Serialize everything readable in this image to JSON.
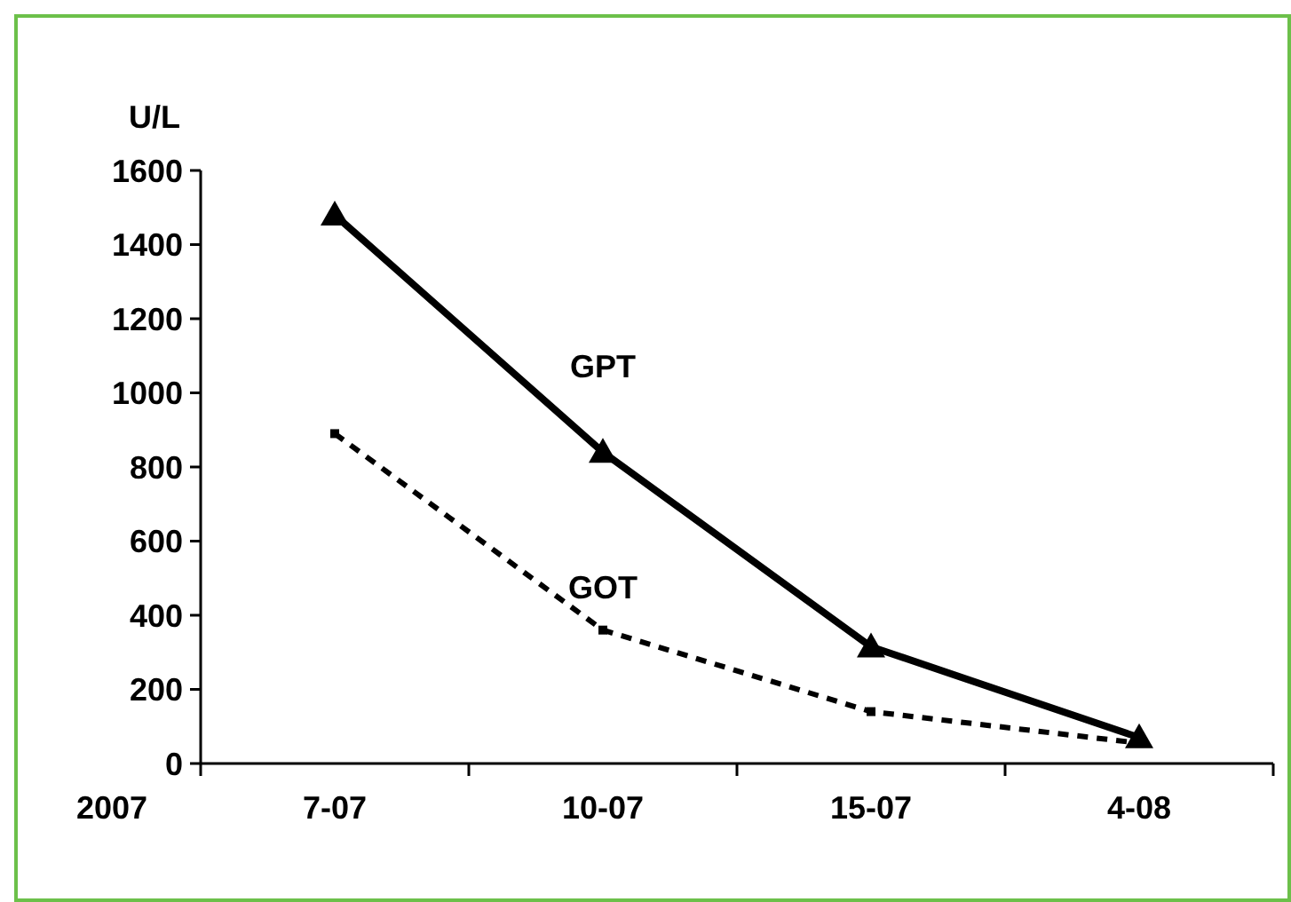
{
  "chart_data": {
    "type": "line",
    "ylabel": "U/L",
    "xlabel": "2007",
    "categories": [
      "7-07",
      "10-07",
      "15-07",
      "4-08"
    ],
    "series": [
      {
        "name": "GPT",
        "color": "#000000",
        "values": [
          1480,
          840,
          315,
          70
        ],
        "marker": "triangle",
        "line_style": "solid"
      },
      {
        "name": "GOT",
        "color": "#000000",
        "values": [
          890,
          360,
          140,
          55
        ],
        "marker": "square",
        "line_style": "dashed"
      }
    ],
    "ylim": [
      0,
      1600
    ],
    "yticks": [
      0,
      200,
      400,
      600,
      800,
      1000,
      1200,
      1400,
      1600
    ],
    "grid": false
  }
}
